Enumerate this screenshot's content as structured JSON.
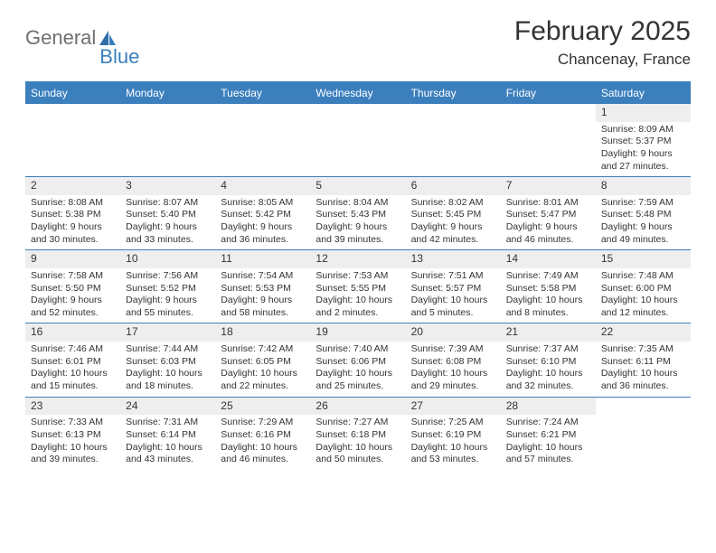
{
  "logo": {
    "part1": "General",
    "part2": "Blue"
  },
  "title": "February 2025",
  "location": "Chancenay, France",
  "header_color": "#3b7fbd",
  "row_divider_color": "#3b7fbd",
  "daynum_bg": "#eeeeee",
  "text_color": "#333333",
  "dow": [
    "Sunday",
    "Monday",
    "Tuesday",
    "Wednesday",
    "Thursday",
    "Friday",
    "Saturday"
  ],
  "weeks": [
    [
      null,
      null,
      null,
      null,
      null,
      null,
      {
        "n": "1",
        "sr": "Sunrise: 8:09 AM",
        "ss": "Sunset: 5:37 PM",
        "d1": "Daylight: 9 hours",
        "d2": "and 27 minutes."
      }
    ],
    [
      {
        "n": "2",
        "sr": "Sunrise: 8:08 AM",
        "ss": "Sunset: 5:38 PM",
        "d1": "Daylight: 9 hours",
        "d2": "and 30 minutes."
      },
      {
        "n": "3",
        "sr": "Sunrise: 8:07 AM",
        "ss": "Sunset: 5:40 PM",
        "d1": "Daylight: 9 hours",
        "d2": "and 33 minutes."
      },
      {
        "n": "4",
        "sr": "Sunrise: 8:05 AM",
        "ss": "Sunset: 5:42 PM",
        "d1": "Daylight: 9 hours",
        "d2": "and 36 minutes."
      },
      {
        "n": "5",
        "sr": "Sunrise: 8:04 AM",
        "ss": "Sunset: 5:43 PM",
        "d1": "Daylight: 9 hours",
        "d2": "and 39 minutes."
      },
      {
        "n": "6",
        "sr": "Sunrise: 8:02 AM",
        "ss": "Sunset: 5:45 PM",
        "d1": "Daylight: 9 hours",
        "d2": "and 42 minutes."
      },
      {
        "n": "7",
        "sr": "Sunrise: 8:01 AM",
        "ss": "Sunset: 5:47 PM",
        "d1": "Daylight: 9 hours",
        "d2": "and 46 minutes."
      },
      {
        "n": "8",
        "sr": "Sunrise: 7:59 AM",
        "ss": "Sunset: 5:48 PM",
        "d1": "Daylight: 9 hours",
        "d2": "and 49 minutes."
      }
    ],
    [
      {
        "n": "9",
        "sr": "Sunrise: 7:58 AM",
        "ss": "Sunset: 5:50 PM",
        "d1": "Daylight: 9 hours",
        "d2": "and 52 minutes."
      },
      {
        "n": "10",
        "sr": "Sunrise: 7:56 AM",
        "ss": "Sunset: 5:52 PM",
        "d1": "Daylight: 9 hours",
        "d2": "and 55 minutes."
      },
      {
        "n": "11",
        "sr": "Sunrise: 7:54 AM",
        "ss": "Sunset: 5:53 PM",
        "d1": "Daylight: 9 hours",
        "d2": "and 58 minutes."
      },
      {
        "n": "12",
        "sr": "Sunrise: 7:53 AM",
        "ss": "Sunset: 5:55 PM",
        "d1": "Daylight: 10 hours",
        "d2": "and 2 minutes."
      },
      {
        "n": "13",
        "sr": "Sunrise: 7:51 AM",
        "ss": "Sunset: 5:57 PM",
        "d1": "Daylight: 10 hours",
        "d2": "and 5 minutes."
      },
      {
        "n": "14",
        "sr": "Sunrise: 7:49 AM",
        "ss": "Sunset: 5:58 PM",
        "d1": "Daylight: 10 hours",
        "d2": "and 8 minutes."
      },
      {
        "n": "15",
        "sr": "Sunrise: 7:48 AM",
        "ss": "Sunset: 6:00 PM",
        "d1": "Daylight: 10 hours",
        "d2": "and 12 minutes."
      }
    ],
    [
      {
        "n": "16",
        "sr": "Sunrise: 7:46 AM",
        "ss": "Sunset: 6:01 PM",
        "d1": "Daylight: 10 hours",
        "d2": "and 15 minutes."
      },
      {
        "n": "17",
        "sr": "Sunrise: 7:44 AM",
        "ss": "Sunset: 6:03 PM",
        "d1": "Daylight: 10 hours",
        "d2": "and 18 minutes."
      },
      {
        "n": "18",
        "sr": "Sunrise: 7:42 AM",
        "ss": "Sunset: 6:05 PM",
        "d1": "Daylight: 10 hours",
        "d2": "and 22 minutes."
      },
      {
        "n": "19",
        "sr": "Sunrise: 7:40 AM",
        "ss": "Sunset: 6:06 PM",
        "d1": "Daylight: 10 hours",
        "d2": "and 25 minutes."
      },
      {
        "n": "20",
        "sr": "Sunrise: 7:39 AM",
        "ss": "Sunset: 6:08 PM",
        "d1": "Daylight: 10 hours",
        "d2": "and 29 minutes."
      },
      {
        "n": "21",
        "sr": "Sunrise: 7:37 AM",
        "ss": "Sunset: 6:10 PM",
        "d1": "Daylight: 10 hours",
        "d2": "and 32 minutes."
      },
      {
        "n": "22",
        "sr": "Sunrise: 7:35 AM",
        "ss": "Sunset: 6:11 PM",
        "d1": "Daylight: 10 hours",
        "d2": "and 36 minutes."
      }
    ],
    [
      {
        "n": "23",
        "sr": "Sunrise: 7:33 AM",
        "ss": "Sunset: 6:13 PM",
        "d1": "Daylight: 10 hours",
        "d2": "and 39 minutes."
      },
      {
        "n": "24",
        "sr": "Sunrise: 7:31 AM",
        "ss": "Sunset: 6:14 PM",
        "d1": "Daylight: 10 hours",
        "d2": "and 43 minutes."
      },
      {
        "n": "25",
        "sr": "Sunrise: 7:29 AM",
        "ss": "Sunset: 6:16 PM",
        "d1": "Daylight: 10 hours",
        "d2": "and 46 minutes."
      },
      {
        "n": "26",
        "sr": "Sunrise: 7:27 AM",
        "ss": "Sunset: 6:18 PM",
        "d1": "Daylight: 10 hours",
        "d2": "and 50 minutes."
      },
      {
        "n": "27",
        "sr": "Sunrise: 7:25 AM",
        "ss": "Sunset: 6:19 PM",
        "d1": "Daylight: 10 hours",
        "d2": "and 53 minutes."
      },
      {
        "n": "28",
        "sr": "Sunrise: 7:24 AM",
        "ss": "Sunset: 6:21 PM",
        "d1": "Daylight: 10 hours",
        "d2": "and 57 minutes."
      },
      null
    ]
  ]
}
